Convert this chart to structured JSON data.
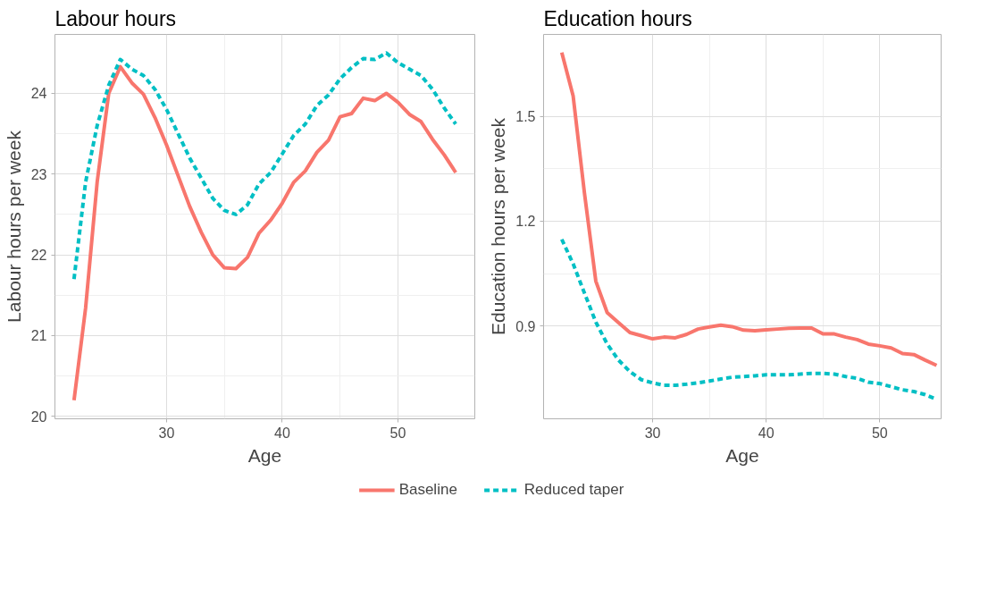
{
  "chart_data": [
    {
      "type": "line",
      "title": "Labour hours",
      "xlabel": "Age",
      "ylabel": "Labour hours per week",
      "x": [
        22,
        23,
        24,
        25,
        26,
        27,
        28,
        29,
        30,
        31,
        32,
        33,
        34,
        35,
        36,
        37,
        38,
        39,
        40,
        41,
        42,
        43,
        44,
        45,
        46,
        47,
        48,
        49,
        50,
        51,
        52,
        53,
        54,
        55
      ],
      "xlim": [
        20.35,
        56.65
      ],
      "xticks": [
        30,
        40,
        50
      ],
      "ylim": [
        19.97,
        24.73
      ],
      "yticks": [
        20,
        21,
        22,
        23,
        24
      ],
      "grid": true,
      "legend": "bottom",
      "series": [
        {
          "name": "Baseline",
          "color": "#f8766d",
          "line_style": "solid",
          "values": [
            20.2,
            21.34,
            22.9,
            24.0,
            24.33,
            24.13,
            23.99,
            23.7,
            23.36,
            22.98,
            22.6,
            22.28,
            22.0,
            21.84,
            21.83,
            21.97,
            22.27,
            22.43,
            22.64,
            22.9,
            23.04,
            23.27,
            23.42,
            23.71,
            23.75,
            23.94,
            23.91,
            24.0,
            23.89,
            23.74,
            23.65,
            23.43,
            23.24,
            23.02
          ]
        },
        {
          "name": "Reduced taper",
          "color": "#00bfc4",
          "line_style": "dashed",
          "values": [
            21.7,
            22.9,
            23.6,
            24.1,
            24.42,
            24.3,
            24.22,
            24.05,
            23.8,
            23.5,
            23.2,
            22.95,
            22.7,
            22.55,
            22.5,
            22.62,
            22.88,
            23.02,
            23.25,
            23.48,
            23.62,
            23.85,
            23.98,
            24.18,
            24.32,
            24.43,
            24.42,
            24.5,
            24.38,
            24.3,
            24.22,
            24.05,
            23.82,
            23.62
          ]
        }
      ]
    },
    {
      "type": "line",
      "title": "Education hours",
      "xlabel": "Age",
      "ylabel": "Education hours per week",
      "x": [
        22,
        23,
        24,
        25,
        26,
        27,
        28,
        29,
        30,
        31,
        32,
        33,
        34,
        35,
        36,
        37,
        38,
        39,
        40,
        41,
        42,
        43,
        44,
        45,
        46,
        47,
        48,
        49,
        50,
        51,
        52,
        53,
        54,
        55
      ],
      "xlim": [
        20.4,
        55.4
      ],
      "xticks": [
        30,
        40,
        50
      ],
      "ylim": [
        0.634,
        1.735
      ],
      "yticks": [
        0.9,
        1.2,
        1.5
      ],
      "grid": true,
      "series": [
        {
          "color": "#f8766d",
          "line_style": "solid",
          "values": [
            1.683,
            1.559,
            1.28,
            1.028,
            0.938,
            0.909,
            0.881,
            0.872,
            0.863,
            0.868,
            0.866,
            0.876,
            0.891,
            0.897,
            0.902,
            0.898,
            0.888,
            0.886,
            0.889,
            0.891,
            0.893,
            0.894,
            0.894,
            0.877,
            0.877,
            0.868,
            0.861,
            0.848,
            0.843,
            0.837,
            0.821,
            0.818,
            0.802,
            0.787
          ]
        },
        {
          "color": "#00bfc4",
          "line_style": "dashed",
          "values": [
            1.148,
            1.078,
            0.994,
            0.911,
            0.848,
            0.802,
            0.769,
            0.746,
            0.737,
            0.73,
            0.73,
            0.733,
            0.737,
            0.742,
            0.748,
            0.753,
            0.755,
            0.757,
            0.76,
            0.76,
            0.76,
            0.762,
            0.764,
            0.764,
            0.762,
            0.755,
            0.75,
            0.739,
            0.735,
            0.726,
            0.717,
            0.712,
            0.703,
            0.69
          ]
        }
      ]
    }
  ]
}
